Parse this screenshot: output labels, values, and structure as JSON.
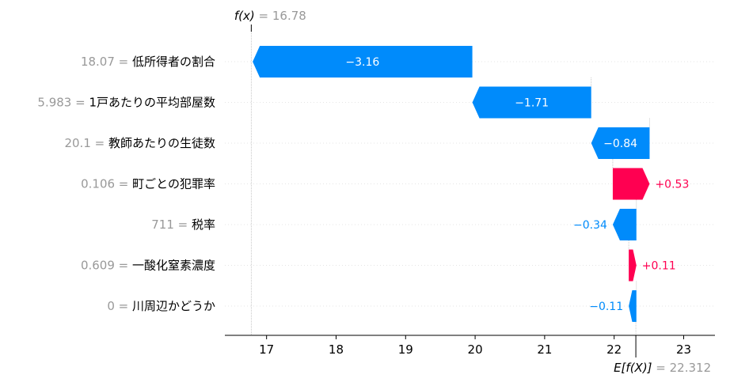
{
  "chart_data": {
    "type": "waterfall",
    "fx": {
      "label": "f(x)",
      "value": "16.78"
    },
    "base": {
      "label": "E[f(X)]",
      "value": "22.312"
    },
    "xlim": [
      16.4,
      23.45
    ],
    "xticks": [
      "17",
      "18",
      "19",
      "20",
      "21",
      "22",
      "23"
    ],
    "base_value": 22.312,
    "final_value": 16.78,
    "colors": {
      "positive": "#ff0051",
      "negative": "#008bfb"
    },
    "features": [
      {
        "value": "18.07",
        "name": "低所得者の割合",
        "contribution": -3.16,
        "label": "−3.16",
        "start": 19.96,
        "end": 16.8
      },
      {
        "value": "5.983",
        "name": "1戸あたりの平均部屋数",
        "contribution": -1.71,
        "label": "−1.71",
        "start": 21.67,
        "end": 19.96
      },
      {
        "value": "20.1",
        "name": "教師あたりの生徒数",
        "contribution": -0.84,
        "label": "−0.84",
        "start": 22.51,
        "end": 21.67
      },
      {
        "value": "0.106",
        "name": "町ごとの犯罪率",
        "contribution": 0.53,
        "label": "+0.53",
        "start": 21.98,
        "end": 22.51
      },
      {
        "value": "711",
        "name": "税率",
        "contribution": -0.34,
        "label": "−0.34",
        "start": 22.32,
        "end": 21.98
      },
      {
        "value": "0.609",
        "name": "一酸化窒素濃度",
        "contribution": 0.11,
        "label": "+0.11",
        "start": 22.21,
        "end": 22.32
      },
      {
        "value": "0",
        "name": "川周辺かどうか",
        "contribution": -0.11,
        "label": "−0.11",
        "start": 22.32,
        "end": 22.21
      }
    ]
  }
}
